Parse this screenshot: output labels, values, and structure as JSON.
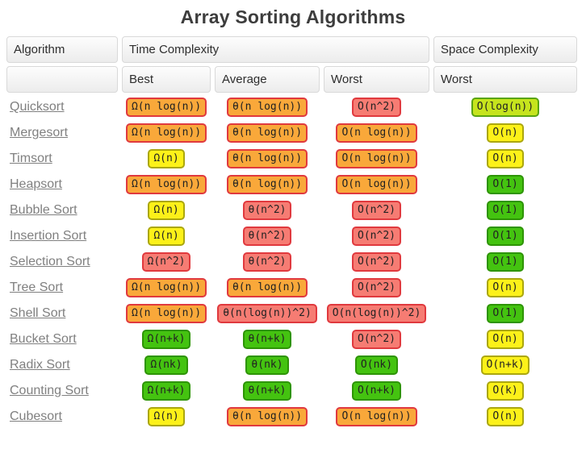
{
  "title": "Array Sorting Algorithms",
  "colors": {
    "orange": {
      "bg": "#F9A83A",
      "border": "#E0393E"
    },
    "red": {
      "bg": "#F67C73",
      "border": "#E0393E"
    },
    "yellow": {
      "bg": "#FCF119",
      "border": "#ABA70E"
    },
    "green": {
      "bg": "#44C310",
      "border": "#2E9406"
    },
    "yellowgreen": {
      "bg": "#C6E41D",
      "border": "#59A410"
    }
  },
  "table": {
    "headers": {
      "algorithm": "Algorithm",
      "time_complexity": "Time Complexity",
      "space_complexity": "Space Complexity",
      "best": "Best",
      "average": "Average",
      "worst": "Worst",
      "space_worst": "Worst"
    },
    "rows": [
      {
        "name": "Quicksort",
        "best": {
          "text": "Ω(n log(n))",
          "level": "orange"
        },
        "avg": {
          "text": "θ(n log(n))",
          "level": "orange"
        },
        "worst": {
          "text": "O(n^2)",
          "level": "red"
        },
        "space": {
          "text": "O(log(n))",
          "level": "yellowgreen"
        }
      },
      {
        "name": "Mergesort",
        "best": {
          "text": "Ω(n log(n))",
          "level": "orange"
        },
        "avg": {
          "text": "θ(n log(n))",
          "level": "orange"
        },
        "worst": {
          "text": "O(n log(n))",
          "level": "orange"
        },
        "space": {
          "text": "O(n)",
          "level": "yellow"
        }
      },
      {
        "name": "Timsort",
        "best": {
          "text": "Ω(n)",
          "level": "yellow"
        },
        "avg": {
          "text": "θ(n log(n))",
          "level": "orange"
        },
        "worst": {
          "text": "O(n log(n))",
          "level": "orange"
        },
        "space": {
          "text": "O(n)",
          "level": "yellow"
        }
      },
      {
        "name": "Heapsort",
        "best": {
          "text": "Ω(n log(n))",
          "level": "orange"
        },
        "avg": {
          "text": "θ(n log(n))",
          "level": "orange"
        },
        "worst": {
          "text": "O(n log(n))",
          "level": "orange"
        },
        "space": {
          "text": "O(1)",
          "level": "green"
        }
      },
      {
        "name": "Bubble Sort",
        "best": {
          "text": "Ω(n)",
          "level": "yellow"
        },
        "avg": {
          "text": "θ(n^2)",
          "level": "red"
        },
        "worst": {
          "text": "O(n^2)",
          "level": "red"
        },
        "space": {
          "text": "O(1)",
          "level": "green"
        }
      },
      {
        "name": "Insertion Sort",
        "best": {
          "text": "Ω(n)",
          "level": "yellow"
        },
        "avg": {
          "text": "θ(n^2)",
          "level": "red"
        },
        "worst": {
          "text": "O(n^2)",
          "level": "red"
        },
        "space": {
          "text": "O(1)",
          "level": "green"
        }
      },
      {
        "name": "Selection Sort",
        "best": {
          "text": "Ω(n^2)",
          "level": "red"
        },
        "avg": {
          "text": "θ(n^2)",
          "level": "red"
        },
        "worst": {
          "text": "O(n^2)",
          "level": "red"
        },
        "space": {
          "text": "O(1)",
          "level": "green"
        }
      },
      {
        "name": "Tree Sort",
        "best": {
          "text": "Ω(n log(n))",
          "level": "orange"
        },
        "avg": {
          "text": "θ(n log(n))",
          "level": "orange"
        },
        "worst": {
          "text": "O(n^2)",
          "level": "red"
        },
        "space": {
          "text": "O(n)",
          "level": "yellow"
        }
      },
      {
        "name": "Shell Sort",
        "best": {
          "text": "Ω(n log(n))",
          "level": "orange"
        },
        "avg": {
          "text": "θ(n(log(n))^2)",
          "level": "red"
        },
        "worst": {
          "text": "O(n(log(n))^2)",
          "level": "red"
        },
        "space": {
          "text": "O(1)",
          "level": "green"
        }
      },
      {
        "name": "Bucket Sort",
        "best": {
          "text": "Ω(n+k)",
          "level": "green"
        },
        "avg": {
          "text": "θ(n+k)",
          "level": "green"
        },
        "worst": {
          "text": "O(n^2)",
          "level": "red"
        },
        "space": {
          "text": "O(n)",
          "level": "yellow"
        }
      },
      {
        "name": "Radix Sort",
        "best": {
          "text": "Ω(nk)",
          "level": "green"
        },
        "avg": {
          "text": "θ(nk)",
          "level": "green"
        },
        "worst": {
          "text": "O(nk)",
          "level": "green"
        },
        "space": {
          "text": "O(n+k)",
          "level": "yellow"
        }
      },
      {
        "name": "Counting Sort",
        "best": {
          "text": "Ω(n+k)",
          "level": "green"
        },
        "avg": {
          "text": "θ(n+k)",
          "level": "green"
        },
        "worst": {
          "text": "O(n+k)",
          "level": "green"
        },
        "space": {
          "text": "O(k)",
          "level": "yellow"
        }
      },
      {
        "name": "Cubesort",
        "best": {
          "text": "Ω(n)",
          "level": "yellow"
        },
        "avg": {
          "text": "θ(n log(n))",
          "level": "orange"
        },
        "worst": {
          "text": "O(n log(n))",
          "level": "orange"
        },
        "space": {
          "text": "O(n)",
          "level": "yellow"
        }
      }
    ]
  }
}
